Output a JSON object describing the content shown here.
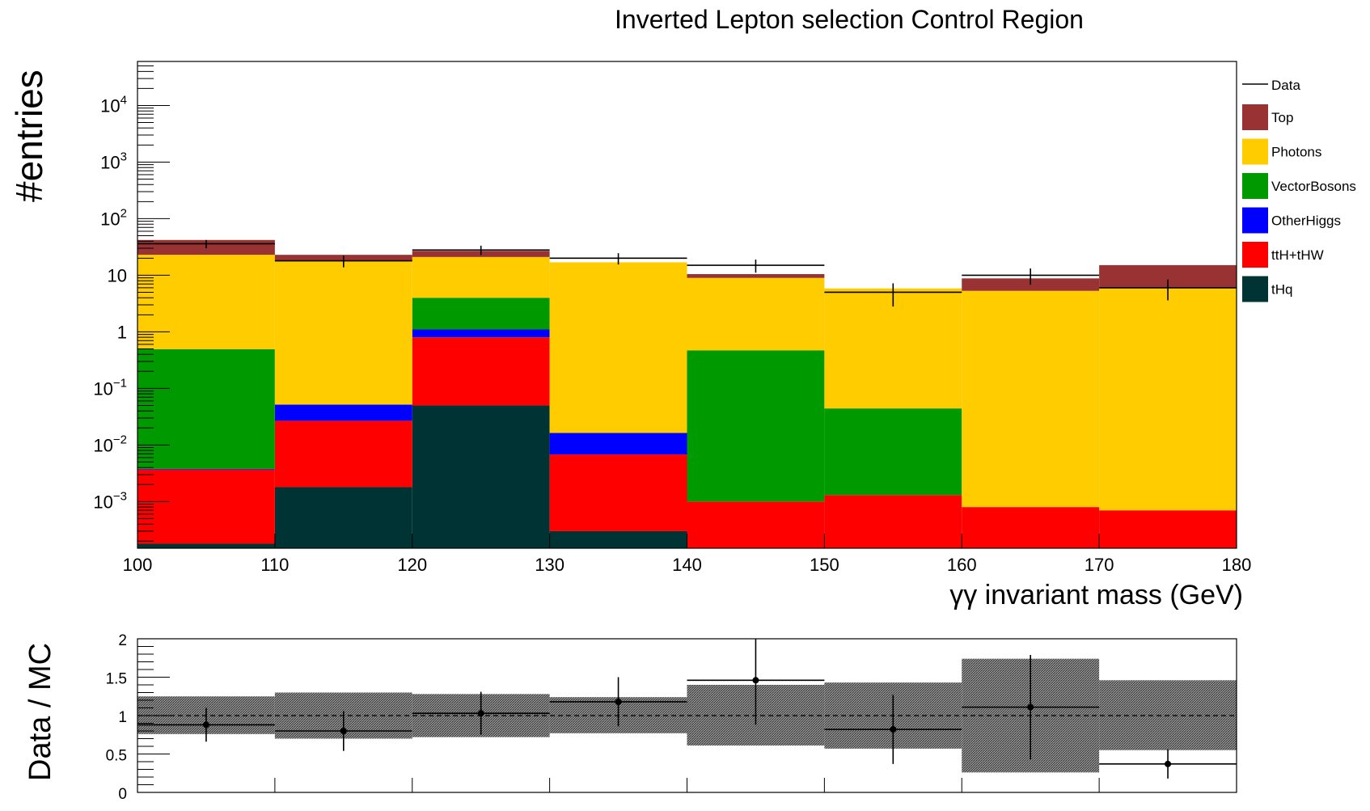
{
  "chart_data": {
    "type": "bar",
    "stacked": true,
    "title": "Inverted Lepton selection Control Region",
    "xlabel": "γγ invariant mass (GeV)",
    "ylabel": "#entries",
    "yscale": "log",
    "ylim": [
      0.00015,
      60000
    ],
    "xlim": [
      100,
      180
    ],
    "bin_edges": [
      100,
      110,
      120,
      130,
      140,
      150,
      160,
      170,
      180
    ],
    "x_ticks": [
      "100",
      "110",
      "120",
      "130",
      "140",
      "150",
      "160",
      "170",
      "180"
    ],
    "y_ticks": [
      {
        "base": "10",
        "exp": "−3",
        "v": 0.001
      },
      {
        "base": "10",
        "exp": "−2",
        "v": 0.01
      },
      {
        "base": "10",
        "exp": "−1",
        "v": 0.1
      },
      {
        "base": "1",
        "exp": "",
        "v": 1
      },
      {
        "base": "10",
        "exp": "",
        "v": 10
      },
      {
        "base": "10",
        "exp": "2",
        "v": 100
      },
      {
        "base": "10",
        "exp": "3",
        "v": 1000
      },
      {
        "base": "10",
        "exp": "4",
        "v": 10000
      }
    ],
    "legend_position": "right",
    "series": [
      {
        "name": "tHq",
        "color": "#003333",
        "values": [
          0.00018,
          0.0018,
          0.05,
          0.0003,
          0,
          0,
          0,
          0
        ]
      },
      {
        "name": "ttH+tHW",
        "color": "#ff0000",
        "values": [
          0.0035,
          0.025,
          0.75,
          0.0065,
          0.001,
          0.0013,
          0.0008,
          0.0007
        ]
      },
      {
        "name": "OtherHiggs",
        "color": "#0000ff",
        "values": [
          0.0001,
          0.025,
          0.3,
          0.0095,
          0,
          0,
          0,
          0
        ]
      },
      {
        "name": "VectorBosons",
        "color": "#009900",
        "values": [
          0.49,
          0,
          2.9,
          0,
          0.47,
          0.043,
          0,
          0
        ]
      },
      {
        "name": "Photons",
        "color": "#ffcc00",
        "values": [
          22.5,
          17.9,
          17,
          16.9,
          8.5,
          5.8,
          5.3,
          6.1
        ]
      },
      {
        "name": "Top",
        "color": "#993333",
        "values": [
          19,
          5,
          6,
          0,
          1.5,
          0,
          3.5,
          9
        ]
      }
    ],
    "data_series": {
      "name": "Data",
      "values": [
        36,
        18,
        28,
        20,
        15,
        5,
        10,
        6
      ],
      "errors": [
        6,
        4.2,
        5.3,
        4.5,
        3.9,
        2.2,
        3.2,
        2.4
      ]
    },
    "ratio": {
      "ylabel": "Data / MC",
      "ylim": [
        0,
        2
      ],
      "y_ticks": [
        "0",
        "0.5",
        "1",
        "1.5",
        "2"
      ],
      "values": [
        0.88,
        0.8,
        1.03,
        1.18,
        1.46,
        0.82,
        1.11,
        0.37
      ],
      "errors": [
        0.22,
        0.26,
        0.28,
        0.32,
        0.58,
        0.45,
        0.68,
        0.19
      ],
      "band_low": [
        0.76,
        0.7,
        0.72,
        0.77,
        0.61,
        0.57,
        0.26,
        0.55
      ],
      "band_high": [
        1.25,
        1.3,
        1.28,
        1.24,
        1.4,
        1.43,
        1.74,
        1.46
      ]
    }
  }
}
